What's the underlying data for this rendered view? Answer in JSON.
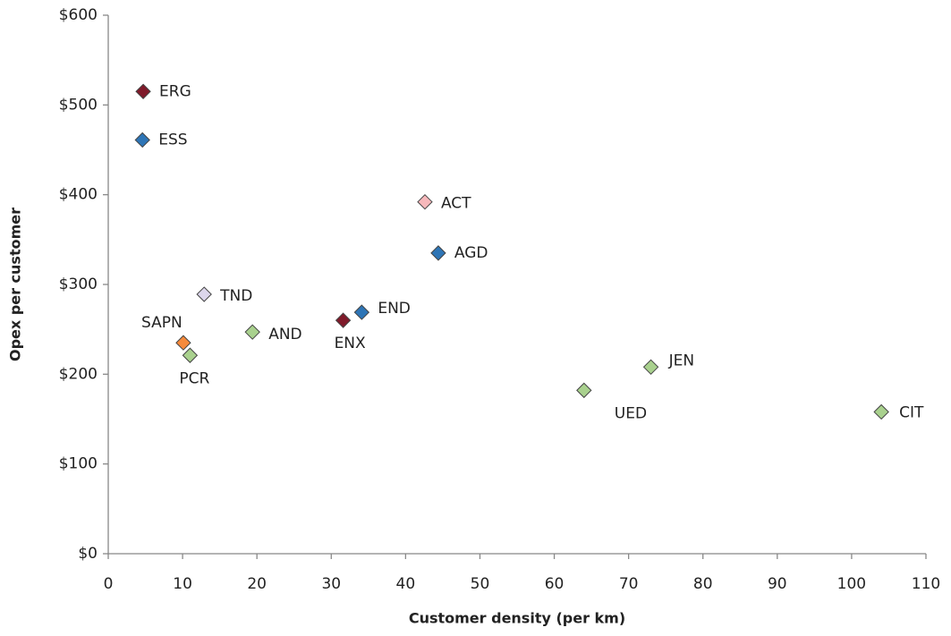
{
  "chart_data": {
    "type": "scatter",
    "x_label": "Customer density (per km)",
    "y_label": "Opex per customer",
    "x": [
      4.7,
      4.6,
      42.6,
      44.4,
      12.9,
      34.1,
      31.6,
      19.4,
      10.1,
      11,
      64,
      73,
      104
    ],
    "series": [
      {
        "values": [
          515,
          461,
          392,
          335,
          289,
          269,
          260,
          247,
          235,
          221,
          182,
          208,
          158
        ]
      }
    ],
    "labels": [
      "ERG",
      "ESS",
      "ACT",
      "AGD",
      "TND",
      "END",
      "ENX",
      "AND",
      "SAPN",
      "PCR",
      "UED",
      "JEN",
      "CIT"
    ],
    "colors": [
      "#7f1a2a",
      "#2e75b6",
      "#f6b8bb",
      "#2e75b6",
      "#dcd6ec",
      "#2e75b6",
      "#7f1a2a",
      "#a9d18e",
      "#f58a3c",
      "#a9d18e",
      "#a9d18e",
      "#a9d18e",
      "#a9d18e"
    ],
    "xlim": [
      0,
      110
    ],
    "xticks": [
      0,
      10,
      20,
      30,
      40,
      50,
      60,
      70,
      80,
      90,
      100,
      110
    ],
    "ylim": [
      0,
      600
    ],
    "yticks": [
      {
        "value": 0,
        "label": "$0"
      },
      {
        "value": 100,
        "label": "$100"
      },
      {
        "value": 200,
        "label": "$200"
      },
      {
        "value": 300,
        "label": "$300"
      },
      {
        "value": 400,
        "label": "$400"
      },
      {
        "value": 500,
        "label": "$500"
      },
      {
        "value": 600,
        "label": "$600"
      }
    ],
    "grid": false
  }
}
